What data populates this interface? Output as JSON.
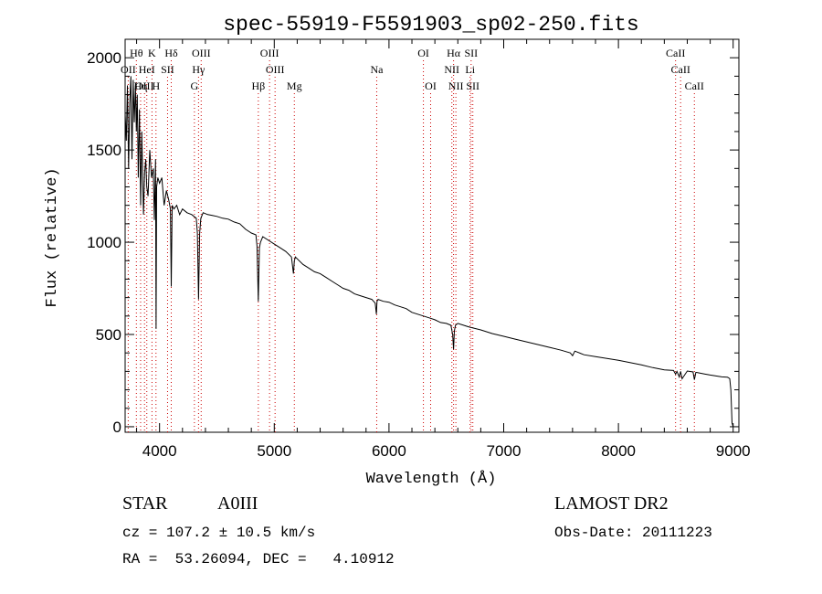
{
  "chart_data": {
    "type": "line",
    "title": "spec-55919-F5591903_sp02-250.fits",
    "xlabel": "Wavelength (Å)",
    "ylabel": "Flux (relative)",
    "xlim": [
      3700,
      9050
    ],
    "ylim": [
      -30,
      2100
    ],
    "x_ticks": [
      4000,
      5000,
      6000,
      7000,
      8000,
      9000
    ],
    "y_ticks": [
      0,
      500,
      1000,
      1500,
      2000
    ],
    "grid": false,
    "series": [
      {
        "color": "#000000",
        "x": [
          3700,
          3710,
          3720,
          3730,
          3740,
          3750,
          3760,
          3770,
          3780,
          3790,
          3798,
          3806,
          3815,
          3825,
          3835,
          3845,
          3860,
          3870,
          3880,
          3889,
          3900,
          3915,
          3930,
          3945,
          3955,
          3965,
          3970,
          3975,
          3985,
          4000,
          4020,
          4040,
          4060,
          4080,
          4095,
          4102,
          4110,
          4125,
          4150,
          4175,
          4200,
          4240,
          4280,
          4320,
          4330,
          4340,
          4350,
          4360,
          4380,
          4420,
          4460,
          4500,
          4550,
          4600,
          4650,
          4700,
          4750,
          4800,
          4840,
          4850,
          4861,
          4870,
          4880,
          4900,
          4950,
          5000,
          5050,
          5100,
          5150,
          5167,
          5175,
          5184,
          5200,
          5250,
          5300,
          5350,
          5400,
          5450,
          5500,
          5550,
          5600,
          5650,
          5700,
          5750,
          5800,
          5850,
          5880,
          5890,
          5896,
          5905,
          5950,
          6000,
          6050,
          6100,
          6150,
          6200,
          6250,
          6300,
          6350,
          6400,
          6450,
          6500,
          6540,
          6555,
          6563,
          6570,
          6580,
          6600,
          6650,
          6700,
          6800,
          6900,
          7000,
          7100,
          7200,
          7300,
          7400,
          7500,
          7580,
          7600,
          7620,
          7700,
          7800,
          7900,
          8000,
          8100,
          8200,
          8300,
          8400,
          8480,
          8498,
          8510,
          8530,
          8542,
          8555,
          8600,
          8650,
          8662,
          8675,
          8700,
          8750,
          8800,
          8850,
          8900,
          8950,
          8960,
          8970,
          8980,
          8990,
          9000
        ],
        "values": [
          1700,
          1550,
          1850,
          1400,
          1750,
          1900,
          1450,
          1880,
          1650,
          1850,
          1600,
          1800,
          1350,
          1720,
          1200,
          1600,
          1150,
          1380,
          1450,
          1300,
          1250,
          1500,
          1350,
          1400,
          1120,
          1450,
          530,
          1300,
          1350,
          1320,
          1350,
          1200,
          1280,
          1230,
          1180,
          760,
          1200,
          1180,
          1200,
          1150,
          1180,
          1160,
          1150,
          1130,
          1050,
          690,
          1050,
          1130,
          1160,
          1150,
          1145,
          1140,
          1130,
          1125,
          1110,
          1100,
          1070,
          1050,
          1040,
          980,
          680,
          970,
          1000,
          1030,
          1010,
          990,
          970,
          950,
          920,
          830,
          900,
          920,
          910,
          880,
          860,
          840,
          830,
          810,
          790,
          770,
          750,
          740,
          720,
          710,
          700,
          690,
          670,
          610,
          680,
          690,
          680,
          675,
          660,
          650,
          640,
          620,
          610,
          600,
          590,
          580,
          565,
          560,
          550,
          500,
          420,
          520,
          550,
          560,
          550,
          540,
          525,
          505,
          490,
          475,
          460,
          445,
          430,
          415,
          400,
          385,
          410,
          390,
          380,
          370,
          360,
          348,
          335,
          320,
          308,
          305,
          285,
          300,
          270,
          300,
          260,
          302,
          297,
          255,
          295,
          292,
          286,
          280,
          275,
          270,
          268,
          265,
          260,
          200,
          20,
          0
        ]
      }
    ],
    "line_ids": [
      {
        "label": "Hθ",
        "x": 3798,
        "row": 1
      },
      {
        "label": "OII",
        "x": 3727,
        "row": 2
      },
      {
        "label": "OIII",
        "x": 3869,
        "row": 3
      },
      {
        "label": "Hη",
        "x": 3835,
        "row": 3
      },
      {
        "label": "K",
        "x": 3934,
        "row": 1
      },
      {
        "label": "HeI",
        "x": 3889,
        "row": 2
      },
      {
        "label": "SII",
        "x": 4070,
        "row": 2
      },
      {
        "label": "H",
        "x": 3969,
        "row": 3
      },
      {
        "label": "Hδ",
        "x": 4102,
        "row": 1
      },
      {
        "label": "OIII",
        "x": 4363,
        "row": 1
      },
      {
        "label": "Hγ",
        "x": 4340,
        "row": 2
      },
      {
        "label": "G",
        "x": 4304,
        "row": 3
      },
      {
        "label": "OIII",
        "x": 4959,
        "row": 1
      },
      {
        "label": "OIII",
        "x": 5007,
        "row": 2
      },
      {
        "label": "Hβ",
        "x": 4861,
        "row": 3
      },
      {
        "label": "Mg",
        "x": 5175,
        "row": 3
      },
      {
        "label": "Na",
        "x": 5893,
        "row": 2
      },
      {
        "label": "OI",
        "x": 6300,
        "row": 1
      },
      {
        "label": "OI",
        "x": 6363,
        "row": 3
      },
      {
        "label": "Hα",
        "x": 6563,
        "row": 1
      },
      {
        "label": "SII",
        "x": 6716,
        "row": 1
      },
      {
        "label": "NII",
        "x": 6548,
        "row": 2
      },
      {
        "label": "Li",
        "x": 6707,
        "row": 2
      },
      {
        "label": "NII",
        "x": 6583,
        "row": 3
      },
      {
        "label": "SII",
        "x": 6731,
        "row": 3
      },
      {
        "label": "CaII",
        "x": 8498,
        "row": 1
      },
      {
        "label": "CaII",
        "x": 8542,
        "row": 2
      },
      {
        "label": "CaII",
        "x": 8662,
        "row": 3
      }
    ]
  },
  "footer": {
    "class_label": "STAR",
    "subclass": "A0III",
    "survey": "LAMOST DR2",
    "cz": "cz = 107.2 ± 10.5 km/s",
    "obs_date": "Obs-Date: 20111223",
    "radec": "RA =  53.26094, DEC =   4.10912"
  }
}
